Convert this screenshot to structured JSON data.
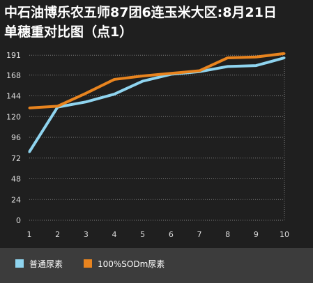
{
  "title": {
    "line1": "中石油博乐农五师87团6连玉米大区:8月21日",
    "line2": "单穗重对比图（点1）"
  },
  "colors": {
    "background": "#1f1f1f",
    "legend_bg": "#3c3c3c",
    "series1": "#8fd4ef",
    "series2": "#e8841f",
    "grid": "#cccccc",
    "axis_text": "#dddddd"
  },
  "chart_data": {
    "type": "line",
    "title": "中石油博乐农五师87团6连玉米大区:8月21日 单穗重对比图（点1）",
    "x": [
      1,
      2,
      3,
      4,
      5,
      6,
      7,
      8,
      9,
      10
    ],
    "x_tick_labels": [
      "1",
      "2",
      "3",
      "4",
      "5",
      "6",
      "7",
      "8",
      "9",
      "10"
    ],
    "y_ticks": [
      0,
      24,
      48,
      72,
      96,
      120,
      144,
      168,
      191
    ],
    "ylim": [
      0,
      192
    ],
    "grid": "horizontal-dotted",
    "legend_position": "bottom",
    "series": [
      {
        "name": "普通尿素",
        "color": "#8fd4ef",
        "values": [
          79,
          131,
          137,
          146,
          161,
          169,
          172,
          178,
          179,
          188
        ]
      },
      {
        "name": "100%SODm尿素",
        "color": "#e8841f",
        "values": [
          130,
          132,
          147,
          163,
          167,
          170,
          173,
          188,
          189,
          193
        ]
      }
    ]
  }
}
